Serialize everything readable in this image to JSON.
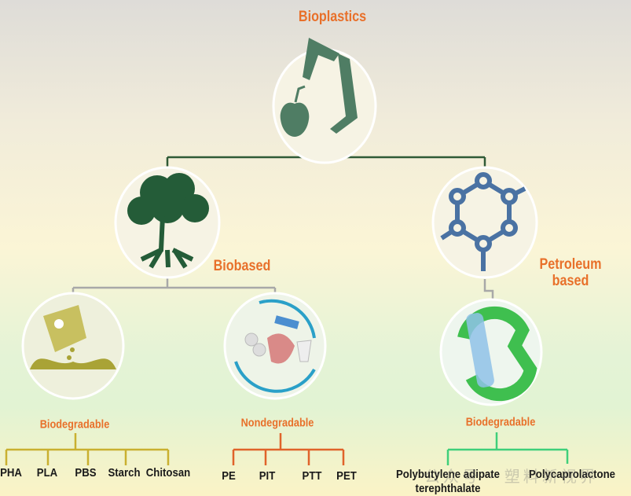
{
  "root": {
    "label": "Bioplastics",
    "icon": "apple-bag-icon",
    "color": "#4f7d64"
  },
  "branches": [
    {
      "label": "Biobased",
      "icon": "tree-icon",
      "color": "#245c38"
    },
    {
      "label": "Petroleum based",
      "label_lines": [
        "Petroleum",
        "based"
      ],
      "icon": "hexagon-molecule-icon",
      "color": "#4a72a3"
    }
  ],
  "groups": [
    {
      "label": "Biodegradable",
      "icon": "compost-bag-icon",
      "line_color": "#c9b030",
      "items": [
        "PHA",
        "PLA",
        "PBS",
        "Starch",
        "Chitosan"
      ]
    },
    {
      "label": "Nondegradable",
      "icon": "plastic-waste-icon",
      "line_color": "#e0632a",
      "items": [
        "PE",
        "PIT",
        "PTT",
        "PET"
      ]
    },
    {
      "label": "Biodegradable",
      "icon": "recycle-bottle-icon",
      "line_color": "#3fcf7a",
      "items": [
        "Polybutylene adipate terephthalate",
        "Polycaprolactone"
      ],
      "item0_lines": [
        "Polybutylene adipate",
        "terephthalate"
      ]
    }
  ],
  "watermark": "公众号 · 塑料新视界",
  "colors": {
    "label": "#e8702a",
    "root_line": "#2f5a36",
    "branch_line": "#a8a8a8"
  }
}
